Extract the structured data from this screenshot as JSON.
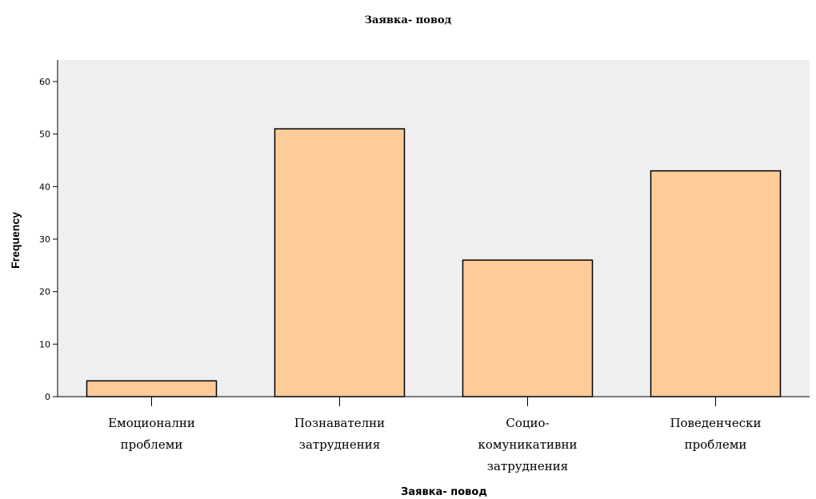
{
  "chart_data": {
    "type": "bar",
    "title": "Заявка- повод",
    "xlabel": "Заявка- повод",
    "ylabel": "Frequency",
    "categories": [
      [
        "Емоционални",
        "проблеми"
      ],
      [
        "Познавателни",
        "затруднения"
      ],
      [
        "Социо-",
        "комуникативни",
        "затруднения"
      ],
      [
        "Поведенчески",
        "проблеми"
      ]
    ],
    "values": [
      3,
      51,
      26,
      43
    ],
    "ylim": [
      0,
      60
    ],
    "yticks": [
      0,
      10,
      20,
      30,
      40,
      50,
      60
    ],
    "grid": false,
    "legend": "none",
    "colors": {
      "plot_background": "#efefef",
      "bar_fill": "#ffcc99",
      "bar_stroke": "#000000"
    }
  }
}
